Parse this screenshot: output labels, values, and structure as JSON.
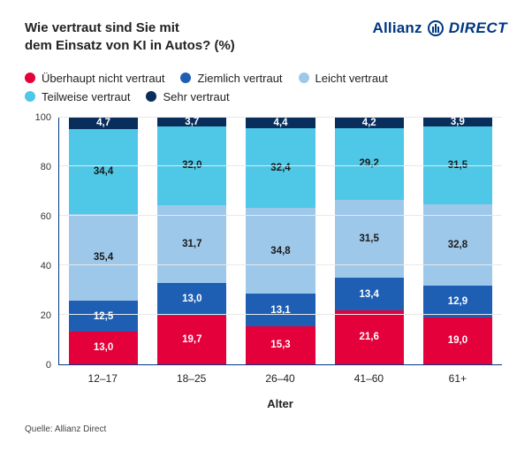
{
  "title_line1": "Wie vertraut sind Sie mit",
  "title_line2": "dem Einsatz von KI in Autos? (%)",
  "brand": {
    "part1": "Allianz",
    "part2": "DIRECT"
  },
  "legend": [
    {
      "label": "Überhaupt nicht vertraut",
      "color": "#e4003a"
    },
    {
      "label": "Ziemlich vertraut",
      "color": "#1e5fb4"
    },
    {
      "label": "Leicht vertraut",
      "color": "#9ec8ea"
    },
    {
      "label": "Teilweise vertraut",
      "color": "#4ec8e6"
    },
    {
      "label": "Sehr vertraut",
      "color": "#0a2e5c"
    }
  ],
  "chart": {
    "type": "stacked-bar",
    "ylim": [
      0,
      100
    ],
    "ytick_step": 20,
    "yticks": [
      0,
      20,
      40,
      60,
      80,
      100
    ],
    "x_title": "Alter",
    "axis_color": "#003781",
    "grid_color": "#e8e8e8",
    "background_color": "#ffffff",
    "bar_width_pct": 78,
    "label_fontsize": 11.5,
    "axis_fontsize": 11,
    "text_on_dark": "#ffffff",
    "text_on_light": "#1a1a1a",
    "categories": [
      "12–17",
      "18–25",
      "26–40",
      "41–60",
      "61+"
    ],
    "stack_order": [
      {
        "key": "not_at_all",
        "color": "#e4003a",
        "dark": true
      },
      {
        "key": "quite",
        "color": "#1e5fb4",
        "dark": true
      },
      {
        "key": "slight",
        "color": "#9ec8ea",
        "dark": false
      },
      {
        "key": "partial",
        "color": "#4ec8e6",
        "dark": false
      },
      {
        "key": "very",
        "color": "#0a2e5c",
        "dark": true
      }
    ],
    "data": [
      {
        "not_at_all": 13.0,
        "quite": 12.5,
        "slight": 35.4,
        "partial": 34.4,
        "very": 4.7
      },
      {
        "not_at_all": 19.7,
        "quite": 13.0,
        "slight": 31.7,
        "partial": 32.0,
        "very": 3.7
      },
      {
        "not_at_all": 15.3,
        "quite": 13.1,
        "slight": 34.8,
        "partial": 32.4,
        "very": 4.4
      },
      {
        "not_at_all": 21.6,
        "quite": 13.4,
        "slight": 31.5,
        "partial": 29.2,
        "very": 4.2
      },
      {
        "not_at_all": 19.0,
        "quite": 12.9,
        "slight": 32.8,
        "partial": 31.5,
        "very": 3.9
      }
    ]
  },
  "source": "Quelle: Allianz Direct"
}
